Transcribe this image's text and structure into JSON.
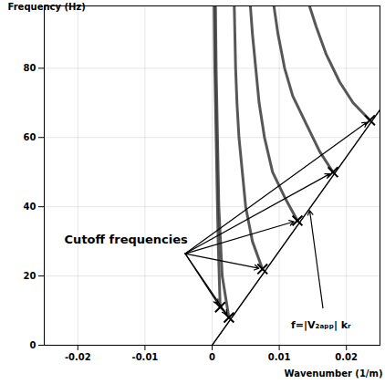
{
  "chart_data": {
    "type": "line",
    "x_label": "Wavenumber (1/m)",
    "y_label": "Frequency (Hz)",
    "xlim": [
      -0.025,
      0.025
    ],
    "ylim": [
      0,
      98
    ],
    "xticks": [
      -0.02,
      -0.01,
      0,
      0.01,
      0.02
    ],
    "yticks": [
      0,
      20,
      40,
      60,
      80
    ],
    "grid": true,
    "series": [
      {
        "type": "line",
        "color": "#3a3a3a",
        "x": [
          0.0025,
          0.0015,
          0.001,
          0.0008,
          0.0006,
          0.0005
        ],
        "values": [
          8,
          20,
          40,
          60,
          80,
          98
        ]
      },
      {
        "type": "line",
        "color": "#3a3a3a",
        "x": [
          0.0012,
          0.0009,
          0.0006,
          0.0004,
          0.0003
        ],
        "values": [
          11,
          30,
          60,
          80,
          98
        ]
      },
      {
        "type": "line",
        "color": "#3a3a3a",
        "x": [
          0.0075,
          0.006,
          0.005,
          0.0045,
          0.004,
          0.0037,
          0.0035,
          0.0033
        ],
        "values": [
          22,
          30,
          40,
          50,
          60,
          70,
          80,
          98
        ]
      },
      {
        "type": "line",
        "color": "#3a3a3a",
        "x": [
          0.0127,
          0.011,
          0.009,
          0.0078,
          0.007,
          0.0065,
          0.006,
          0.0057
        ],
        "values": [
          36,
          42,
          50,
          60,
          70,
          80,
          90,
          98
        ]
      },
      {
        "type": "line",
        "color": "#3a3a3a",
        "x": [
          0.018,
          0.016,
          0.014,
          0.012,
          0.0108,
          0.0098,
          0.0092
        ],
        "values": [
          50,
          56,
          64,
          72,
          80,
          90,
          98
        ]
      },
      {
        "type": "line",
        "color": "#3a3a3a",
        "x": [
          0.0235,
          0.021,
          0.019,
          0.017,
          0.0155,
          0.0145
        ],
        "values": [
          65,
          70,
          76,
          84,
          92,
          98
        ]
      },
      {
        "type": "line",
        "color": "#000000",
        "line_style": "solid",
        "x": [
          0,
          0.025
        ],
        "values": [
          0,
          68
        ]
      },
      {
        "type": "scatter",
        "color": "#000000",
        "marker": "times",
        "x": [
          0.0012,
          0.0025,
          0.0075,
          0.0127,
          0.018,
          0.0235
        ],
        "values": [
          11,
          8,
          22,
          36,
          50,
          65
        ]
      }
    ],
    "annotations": [
      {
        "text": "Cutoff frequencies"
      },
      {
        "text": "f=|V₂ₐₚₚ| kᵣ"
      }
    ]
  }
}
